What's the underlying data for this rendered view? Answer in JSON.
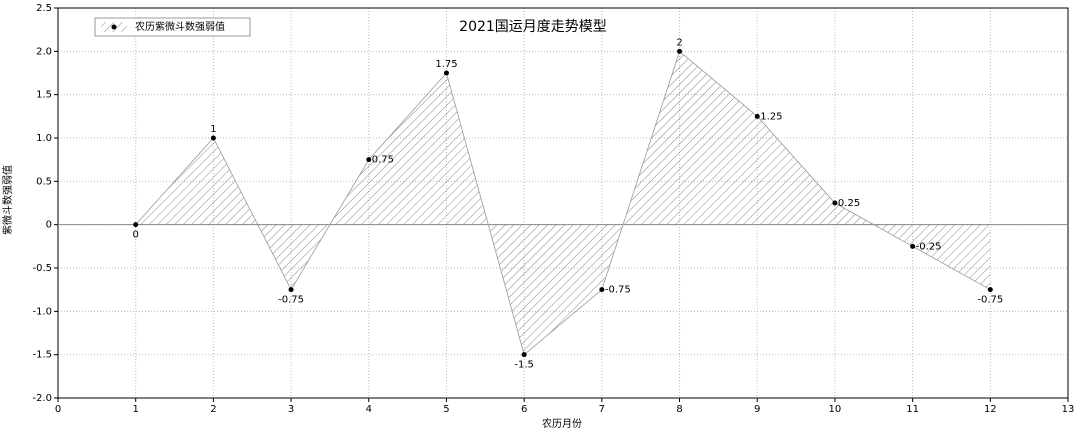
{
  "chart_data": {
    "type": "line",
    "title": "2021国运月度走势模型",
    "xlabel": "农历月份",
    "ylabel": "紫微斗数强弱值",
    "x": [
      1,
      2,
      3,
      4,
      5,
      6,
      7,
      8,
      9,
      10,
      11,
      12
    ],
    "series": [
      {
        "name": "农历紫微斗数强弱值",
        "color": "#000000",
        "values": [
          0,
          1,
          -0.75,
          0.75,
          1.75,
          -1.5,
          -0.75,
          2,
          1.25,
          0.25,
          -0.25,
          -0.75
        ]
      }
    ],
    "xlim": [
      0,
      13
    ],
    "xticks": [
      0,
      1,
      2,
      3,
      4,
      5,
      6,
      7,
      8,
      9,
      10,
      11,
      12,
      13
    ],
    "ylim": [
      -2,
      2.5
    ],
    "yticks": [
      {
        "value": -2,
        "label": "-2.0"
      },
      {
        "value": -1.5,
        "label": "-1.5"
      },
      {
        "value": -1,
        "label": "-1.0"
      },
      -0.5,
      0,
      0.5,
      {
        "value": 1,
        "label": "1.0"
      },
      1.5,
      {
        "value": 2,
        "label": "2.0"
      },
      2.5
    ],
    "grid": true,
    "hatch_fill": true,
    "legend": "upper left"
  }
}
